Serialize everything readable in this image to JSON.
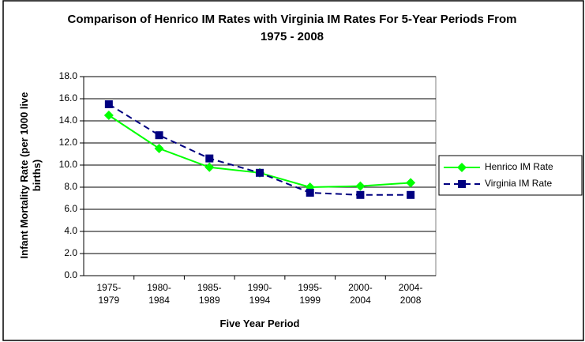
{
  "chart_data": {
    "type": "line",
    "title": "Comparison of Henrico IM Rates with Virginia IM Rates For 5-Year Periods From 1975 - 2008",
    "x_label": "Five Year Period",
    "y_label": "Infant Mortality Rate (per 1000 live births)",
    "categories": [
      "1975-1979",
      "1980-1984",
      "1985-1989",
      "1990-1994",
      "1995-1999",
      "2000-2004",
      "2004-2008"
    ],
    "series": [
      {
        "name": "Henrico IM Rate",
        "color": "#00ff00",
        "marker": "diamond",
        "dash": false,
        "values": [
          14.5,
          11.5,
          9.8,
          9.3,
          8.0,
          8.1,
          8.4
        ]
      },
      {
        "name": "Virginia IM Rate",
        "color": "#000080",
        "marker": "square",
        "dash": true,
        "values": [
          15.5,
          12.7,
          10.6,
          9.3,
          7.5,
          7.3,
          7.3
        ]
      }
    ],
    "ylim": [
      0,
      18
    ],
    "yticks": [
      {
        "value": 0,
        "label": "0.0"
      },
      {
        "value": 2,
        "label": "2.0"
      },
      {
        "value": 4,
        "label": "4.0"
      },
      {
        "value": 6,
        "label": "6.0"
      },
      {
        "value": 8,
        "label": "8.0"
      },
      {
        "value": 10,
        "label": "10.0"
      },
      {
        "value": 12,
        "label": "12.0"
      },
      {
        "value": 14,
        "label": "14.0"
      },
      {
        "value": 16,
        "label": "16.0"
      },
      {
        "value": 18,
        "label": "18.0"
      }
    ],
    "grid": true,
    "legend": "right"
  }
}
